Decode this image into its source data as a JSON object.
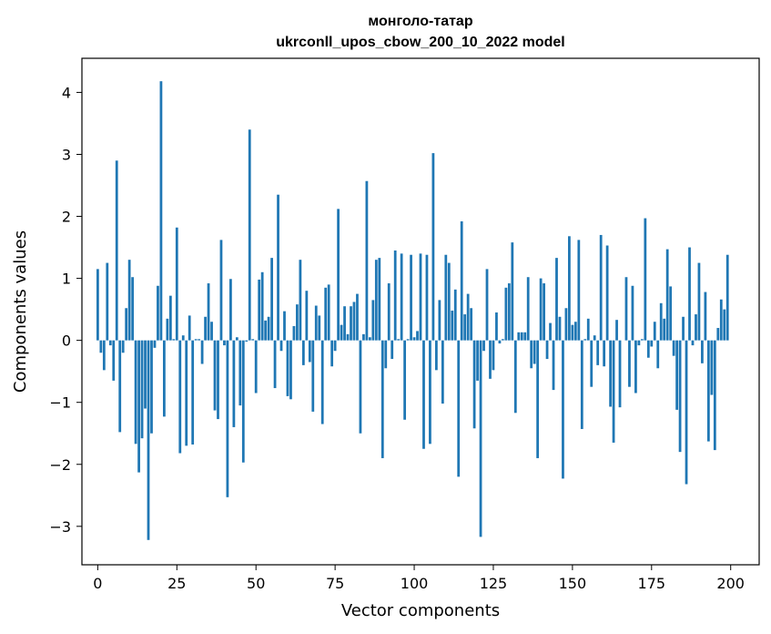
{
  "chart_data": {
    "type": "bar",
    "title_line1": "монголо-татар",
    "title_line2": "ukrconll_upos_cbow_200_10_2022 model",
    "xlabel": "Vector components",
    "ylabel": "Components values",
    "xlim": [
      -5,
      209
    ],
    "ylim": [
      -3.62,
      4.55
    ],
    "xticks": [
      0,
      25,
      50,
      75,
      100,
      125,
      150,
      175,
      200
    ],
    "yticks": [
      -3,
      -2,
      -1,
      0,
      1,
      2,
      3,
      4
    ],
    "ytick_labels": [
      "−3",
      "−2",
      "−1",
      "0",
      "1",
      "2",
      "3",
      "4"
    ],
    "bar_color": "#1f77b4",
    "grid": false,
    "values": [
      1.15,
      -0.2,
      -0.48,
      1.25,
      -0.08,
      -0.65,
      2.9,
      -1.48,
      -0.2,
      0.52,
      1.3,
      1.02,
      -1.67,
      -2.13,
      -1.58,
      -1.1,
      -3.22,
      -1.5,
      -0.12,
      0.88,
      4.18,
      -1.23,
      0.35,
      0.72,
      0.02,
      1.82,
      -1.82,
      0.08,
      -1.7,
      0.4,
      -1.68,
      0.02,
      0.02,
      -0.38,
      0.38,
      0.92,
      0.3,
      -1.13,
      -1.27,
      1.62,
      -0.08,
      -2.53,
      0.99,
      -1.4,
      0.05,
      -1.05,
      -1.97,
      -0.02,
      3.4,
      0.02,
      -0.85,
      0.98,
      1.1,
      0.32,
      0.38,
      1.33,
      -0.77,
      2.35,
      -0.17,
      0.47,
      -0.9,
      -0.95,
      0.23,
      0.58,
      1.3,
      -0.4,
      0.8,
      -0.35,
      -1.15,
      0.56,
      0.4,
      -1.35,
      0.85,
      0.9,
      -0.42,
      -0.17,
      2.12,
      0.25,
      0.55,
      0.1,
      0.55,
      0.62,
      0.75,
      -1.5,
      0.1,
      2.57,
      0.05,
      0.65,
      1.3,
      1.33,
      -1.9,
      -0.45,
      0.92,
      -0.3,
      1.45,
      0.02,
      1.4,
      -1.28,
      0.02,
      1.38,
      0.05,
      0.15,
      1.4,
      -1.75,
      1.38,
      -1.67,
      3.02,
      -0.48,
      0.65,
      -1.02,
      1.38,
      1.25,
      0.48,
      0.82,
      -2.2,
      1.92,
      0.42,
      0.75,
      0.52,
      -1.42,
      -0.65,
      -3.17,
      -0.17,
      1.15,
      -0.62,
      -0.48,
      0.45,
      -0.05,
      0.02,
      0.85,
      0.92,
      1.58,
      -1.17,
      0.13,
      0.13,
      0.13,
      1.02,
      -0.45,
      -0.38,
      -1.9,
      1.0,
      0.92,
      -0.3,
      0.28,
      -0.8,
      1.33,
      0.38,
      -2.23,
      0.52,
      1.68,
      0.25,
      0.3,
      1.62,
      -1.43,
      0.02,
      0.35,
      -0.75,
      0.08,
      -0.4,
      1.7,
      -0.42,
      1.53,
      -1.07,
      -1.65,
      0.33,
      -1.08,
      0.0,
      1.02,
      -0.75,
      0.88,
      -0.85,
      -0.08,
      0.02,
      1.97,
      -0.28,
      -0.1,
      0.3,
      -0.45,
      0.6,
      0.35,
      1.47,
      0.87,
      -0.25,
      -1.12,
      -1.8,
      0.38,
      -2.32,
      1.5,
      -0.08,
      0.42,
      1.25,
      -0.37,
      0.78,
      -1.63,
      -0.88,
      -1.77,
      0.2,
      0.66,
      0.5,
      1.38
    ]
  }
}
